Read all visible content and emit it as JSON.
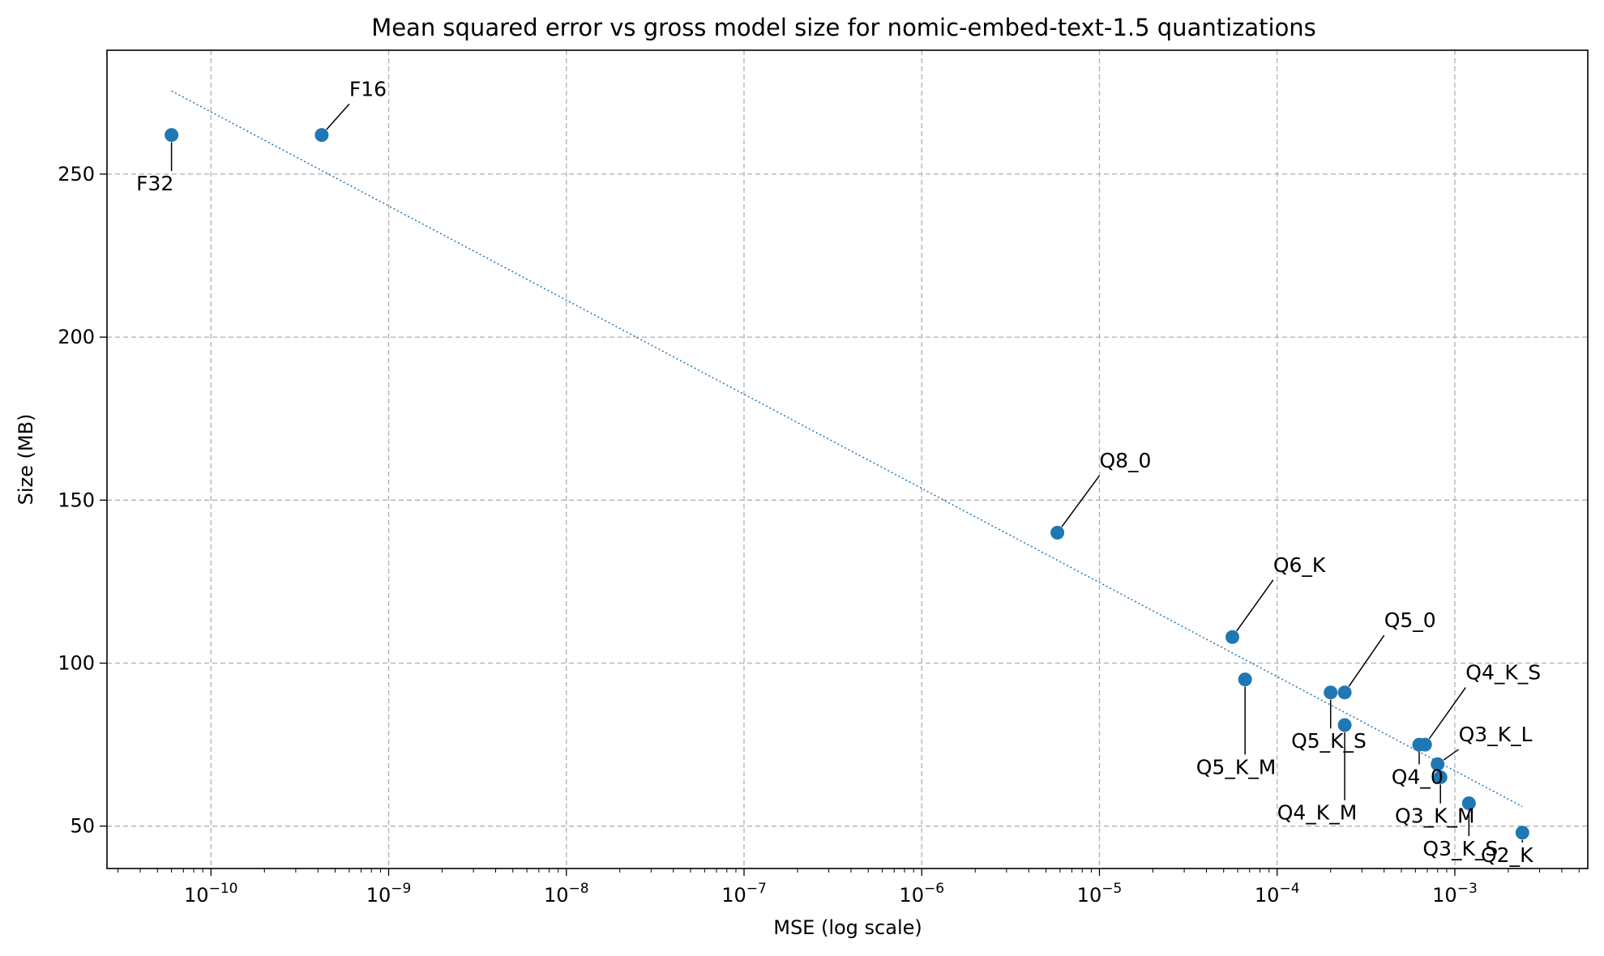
{
  "chart_data": {
    "type": "scatter",
    "title": "Mean squared error vs gross model size for nomic-embed-text-1.5 quantizations",
    "xlabel": "MSE (log scale)",
    "ylabel": "Size (MB)",
    "xscale": "log",
    "xlim": [
      2.6e-11,
      0.0056
    ],
    "ylim": [
      37,
      288
    ],
    "grid": true,
    "marker_color": "#1f77b4",
    "trend_line_color": "#1f77b4",
    "x_ticks": [
      {
        "base": "10",
        "exp": "−10",
        "value": 1e-10
      },
      {
        "base": "10",
        "exp": "−9",
        "value": 1e-09
      },
      {
        "base": "10",
        "exp": "−8",
        "value": 1e-08
      },
      {
        "base": "10",
        "exp": "−7",
        "value": 1e-07
      },
      {
        "base": "10",
        "exp": "−6",
        "value": 1e-06
      },
      {
        "base": "10",
        "exp": "−5",
        "value": 1e-05
      },
      {
        "base": "10",
        "exp": "−4",
        "value": 0.0001
      },
      {
        "base": "10",
        "exp": "−3",
        "value": 0.001
      }
    ],
    "y_ticks": [
      {
        "label": "50",
        "value": 50
      },
      {
        "label": "100",
        "value": 100
      },
      {
        "label": "150",
        "value": 150
      },
      {
        "label": "200",
        "value": 200
      },
      {
        "label": "250",
        "value": 250
      }
    ],
    "points": [
      {
        "label": "F32",
        "x": 6e-11,
        "y": 262,
        "label_x": 3.8e-11,
        "label_y": 245
      },
      {
        "label": "F16",
        "x": 4.2e-10,
        "y": 262,
        "label_x": 6e-10,
        "label_y": 274
      },
      {
        "label": "Q8_0",
        "x": 5.8e-06,
        "y": 140,
        "label_x": 1e-05,
        "label_y": 160
      },
      {
        "label": "Q6_K",
        "x": 5.6e-05,
        "y": 108,
        "label_x": 9.5e-05,
        "label_y": 128
      },
      {
        "label": "Q5_K_M",
        "x": 6.6e-05,
        "y": 95,
        "label_x": 3.5e-05,
        "label_y": 66
      },
      {
        "label": "Q5_0",
        "x": 0.00024,
        "y": 91,
        "label_x": 0.0004,
        "label_y": 111
      },
      {
        "label": "Q5_K_S",
        "x": 0.0002,
        "y": 91,
        "label_x": 0.00012,
        "label_y": 74
      },
      {
        "label": "Q4_K_M",
        "x": 0.00024,
        "y": 81,
        "label_x": 0.0001,
        "label_y": 52
      },
      {
        "label": "Q4_K_S",
        "x": 0.00068,
        "y": 75,
        "label_x": 0.00115,
        "label_y": 95
      },
      {
        "label": "Q4_0",
        "x": 0.00063,
        "y": 75,
        "label_x": 0.00044,
        "label_y": 63
      },
      {
        "label": "Q3_K_L",
        "x": 0.0008,
        "y": 69,
        "label_x": 0.00105,
        "label_y": 76
      },
      {
        "label": "Q3_K_M",
        "x": 0.00083,
        "y": 65,
        "label_x": 0.00046,
        "label_y": 51
      },
      {
        "label": "Q3_K_S",
        "x": 0.0012,
        "y": 57,
        "label_x": 0.00066,
        "label_y": 41
      },
      {
        "label": "Q2_K",
        "x": 0.0024,
        "y": 48,
        "label_x": 0.0014,
        "label_y": 39
      }
    ],
    "trend_line": {
      "x": [
        6e-11,
        0.0024
      ],
      "y": [
        275.5,
        56
      ]
    }
  }
}
